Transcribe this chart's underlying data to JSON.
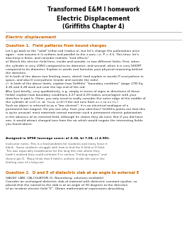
{
  "title1": "Transformed E&M I homework",
  "title2": "Electric Displacement",
  "title3": "(Griffiths Chapter 4)",
  "section_label": "Electric displacement",
  "q1_title": "Question 1.  Field patterns from bound charges",
  "q1_body": "Let's go back to the \"solid\" teflon rod (radius a), but let's change the polarization once\nagain - now assume it is uniform and parallel to the z-axis, i.e. P = 4 k. This time, let's\nalso keep it finite, and consider realistic \"end effects\"\na) Sketch the electric field lines, inside and outside, in two different limits: First, when\nthe cylinder is very LONG compared to its diameter, and second, when it is very SHORT\ncompared to its diameter. Explain in words and formulas your physical reasoning behind\nthe sketches.\nb) In both of the above two limiting cases, sketch (and explain in words) P everywhere in\nspace, and also D everywhere (inside and outside the rods).\nc)  In both of the above limits, explain how Griffiths' \"boundary condition\" (page 178) Eq\n4.26 and 4.28 work out near the top end of the rod.\nAlso (just briefly, very qualitatively, e.g. simply in terms of signs or directions of these\nfields) explain how boundary conditions 4.27 and 4.29 makes sense/agree with your\nsketches in part b. (Here, you only need to really consider the outer edge of the middle of\nthe cylinder at z=0 i.e. at  (s=a, z=0) if the rod runs from z=-L to z=+L.)\nSuch an object is referred to as a \"bar electret\", it is an electrical analogue of a\npermanent bar magnet. Do you see why, from your sketches? Griffiths points out that this\nis quite unusual: most materials cannot maintain such a permanent electric polarization\nin the absence of an external field, although he claims they do exist. But if you did have\none, it would attract charged ions from the air which would negate the interesting fields\nyou found above.",
  "assigned_title": "Assigned in SP08 (average score: a) 4.34, b) 7.08, c) 4.90):",
  "assigned_body": "Instructor notes: This is a hard problem for students and many leave it\nblank.  Some students struggle with how to find the E field or D field.\nThis was especially troublesome for the long thin rod, where they\nhadn't realized they could estimate E in various \"limiting regions\" and\nthence get D.  Many think that E field is uniform inside the rod in the\nlimiting case of a long rod.",
  "q2_title": "Question 2.  D and E of dielectric slab at an angle to external E",
  "q2_body": "GAUSS' LAW; CALCULATION (U. Nauenberg; solutions available)\nConsider an uncharged dielectric slab of material with dielectric constant epsilon, so\nplaced that the normal to the slab is at an angle of 30 degrees to the direction\nof an incident electric field \"E\". Obtain mathematical expressions describing",
  "bg_color": "#ffffff",
  "section_color": "#cc6600",
  "q1_title_color": "#cc6600",
  "q2_title_color": "#cc6600",
  "line_color": "#aaaaaa"
}
